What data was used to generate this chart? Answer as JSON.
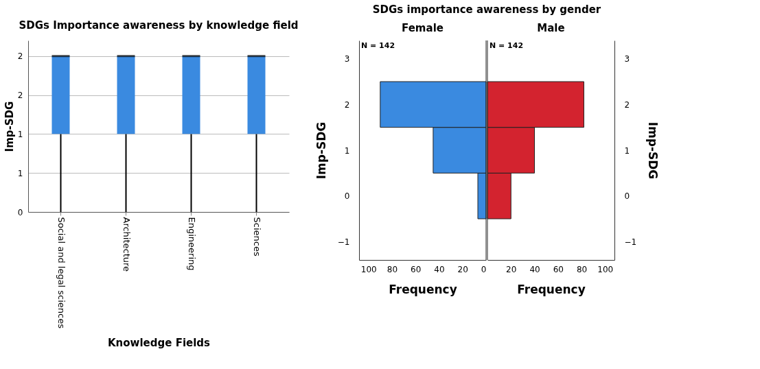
{
  "chart_data": [
    {
      "type": "box",
      "title": "SDGs Importance awareness by knowledge field",
      "xlabel": "Knowledge Fields",
      "ylabel": "Imp-SDG",
      "categories": [
        "Social and legal sciences",
        "Architecture",
        "Engineering",
        "Sciences"
      ],
      "series": [
        {
          "color": "#3a8ae0",
          "boxes": [
            {
              "low": 0,
              "q1": 1,
              "median": 2,
              "q3": 2,
              "high": 2
            },
            {
              "low": 0,
              "q1": 1,
              "median": 2,
              "q3": 2,
              "high": 2
            },
            {
              "low": 0,
              "q1": 1,
              "median": 2,
              "q3": 2,
              "high": 2
            },
            {
              "low": 0,
              "q1": 1,
              "median": 2,
              "q3": 2,
              "high": 2
            }
          ]
        }
      ],
      "ylim": [
        0,
        2.2
      ],
      "yticks": [
        0,
        {
          "value": 0.5,
          "label": "1"
        },
        1,
        {
          "value": 1.5,
          "label": "2"
        },
        2
      ],
      "grid": "y"
    },
    {
      "type": "histogram",
      "orientation": "horizontal",
      "title": "SDGs importance awareness by gender",
      "subtitle": "Female",
      "xlabel": "Frequency",
      "ylabel": "Imp-SDG",
      "bins": [
        -0.5,
        0.5,
        1.5,
        2.5
      ],
      "series": [
        {
          "color": "#3a8ae0",
          "values": [
            7,
            45,
            90
          ]
        }
      ],
      "xlim": [
        108,
        0
      ],
      "xticks": [
        100,
        80,
        60,
        40,
        20,
        0
      ],
      "ylim": [
        -1.4,
        3.4
      ],
      "yticks": [
        -1,
        0,
        1,
        2,
        3
      ],
      "annotations": [
        "N = 142"
      ]
    },
    {
      "type": "histogram",
      "orientation": "horizontal",
      "subtitle": "Male",
      "xlabel": "Frequency",
      "ylabel": "Imp-SDG",
      "bins": [
        -0.5,
        0.5,
        1.5,
        2.5
      ],
      "series": [
        {
          "color": "#d3232f",
          "values": [
            20,
            40,
            82
          ]
        }
      ],
      "xlim": [
        0,
        108
      ],
      "xticks": [
        20,
        40,
        60,
        80,
        100
      ],
      "ylim": [
        -1.4,
        3.4
      ],
      "yticks": [
        -1,
        0,
        1,
        2,
        3
      ],
      "annotations": [
        "N = 142"
      ]
    }
  ]
}
